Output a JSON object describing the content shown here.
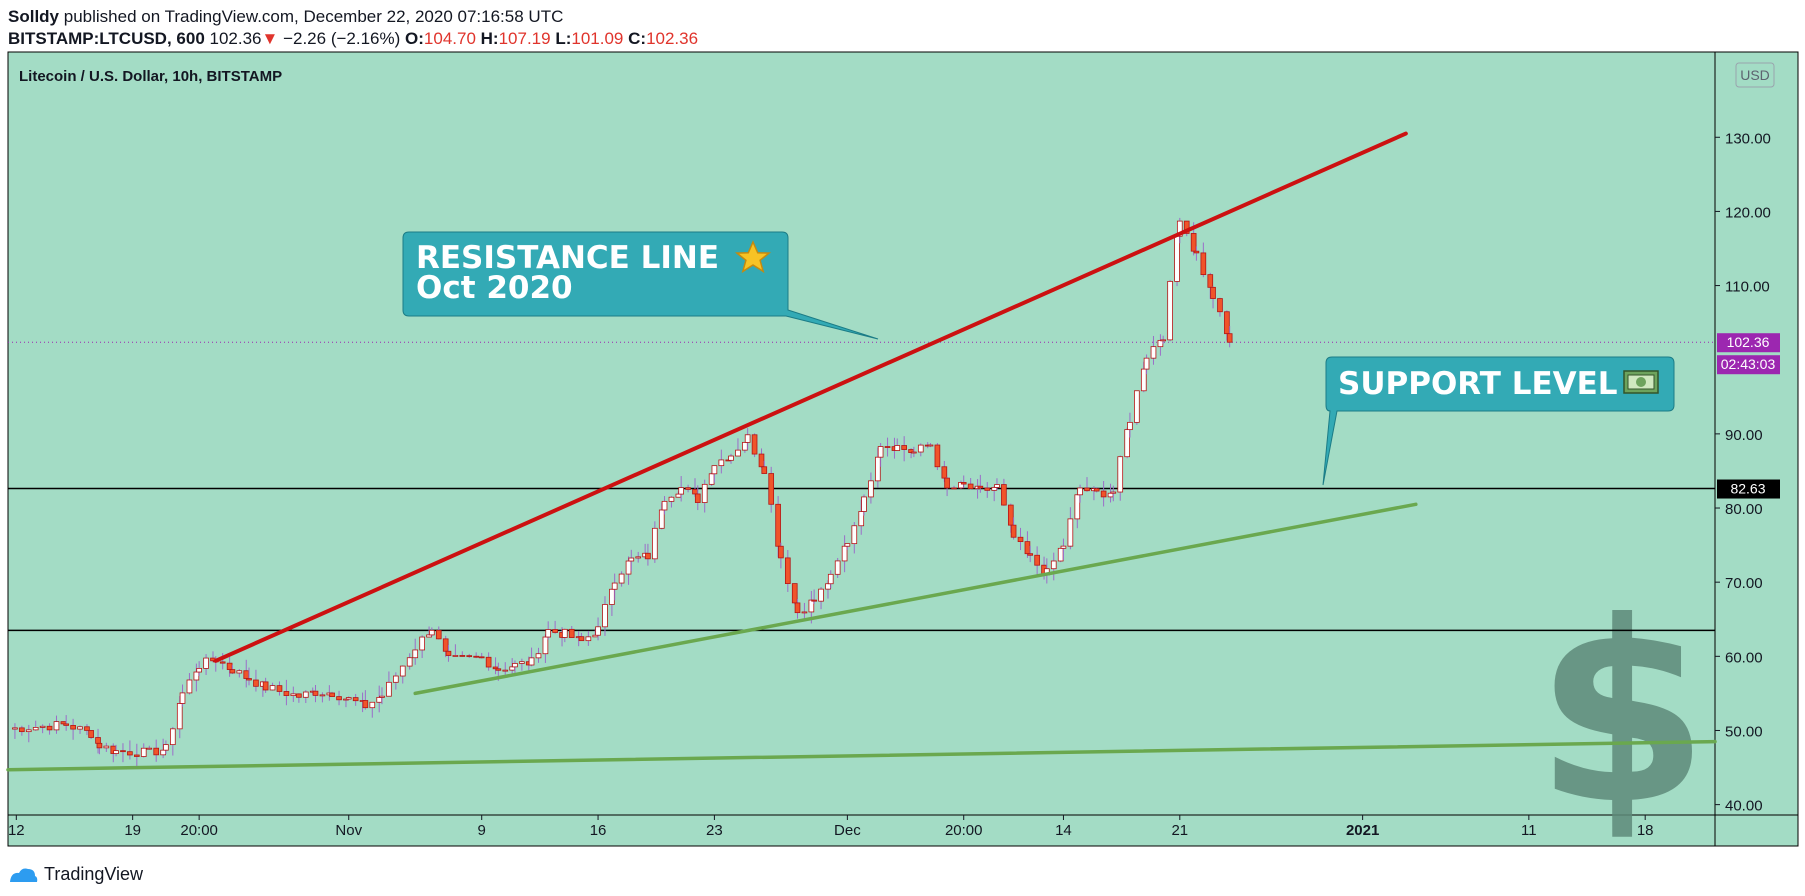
{
  "header": {
    "author": "Solldy",
    "published_text": "published on TradingView.com, December 22, 2020 07:16:58 UTC",
    "symbol": "BITSTAMP:LTCUSD, 600",
    "last": "102.36",
    "change": "−2.26 (−2.16%)",
    "o_label": "O:",
    "o": "104.70",
    "h_label": "H:",
    "h": "107.19",
    "l_label": "L:",
    "l": "101.09",
    "c_label": "C:",
    "c": "102.36"
  },
  "chart_data": {
    "type": "candlestick",
    "title": "Litecoin / U.S. Dollar, 10h, BITSTAMP",
    "currency": "USD",
    "ylim": [
      38.6,
      141.5
    ],
    "y_ticks": [
      40,
      50,
      60,
      70,
      80,
      90,
      110,
      120,
      130
    ],
    "x_ticks": [
      "12",
      "19",
      "20:00",
      "Nov",
      "9",
      "16",
      "23",
      "Dec",
      "20:00",
      "14",
      "21",
      "2021",
      "11",
      "18"
    ],
    "x_tick_days": [
      0,
      7,
      11,
      20,
      28,
      35,
      42,
      50,
      57,
      63,
      70,
      81,
      91,
      98
    ],
    "x_range_days": [
      -0.5,
      102.2
    ],
    "price_badge": "102.36",
    "timer_badge": "02:43:03",
    "level_badge": "82.63",
    "price_line": 102.36,
    "horizontal_levels": [
      82.63,
      63.5
    ],
    "candle_keys": [
      [
        -0.5,
        50.2
      ],
      [
        3,
        50.8
      ],
      [
        4.5,
        49.6
      ],
      [
        5,
        48
      ],
      [
        6,
        47.2
      ],
      [
        8,
        47
      ],
      [
        9,
        47.5
      ],
      [
        10,
        55
      ],
      [
        11,
        58.8
      ],
      [
        12,
        59.6
      ],
      [
        13,
        58.2
      ],
      [
        14,
        57
      ],
      [
        15,
        55.8
      ],
      [
        17,
        54.6
      ],
      [
        18,
        55.2
      ],
      [
        19,
        55.1
      ],
      [
        20,
        54.2
      ],
      [
        21,
        53.3
      ],
      [
        22,
        54.7
      ],
      [
        24,
        61.2
      ],
      [
        25,
        63.8
      ],
      [
        26,
        59.5
      ],
      [
        28,
        59.8
      ],
      [
        29,
        58.3
      ],
      [
        30,
        58.8
      ],
      [
        31,
        59.2
      ],
      [
        32,
        63.5
      ],
      [
        33,
        63
      ],
      [
        34,
        62
      ],
      [
        35,
        63.6
      ],
      [
        36,
        70.5
      ],
      [
        37,
        73
      ],
      [
        38,
        73.5
      ],
      [
        39,
        81.5
      ],
      [
        40,
        82.7
      ],
      [
        41,
        81.2
      ],
      [
        42,
        86
      ],
      [
        43,
        87.2
      ],
      [
        44,
        89.5
      ],
      [
        45,
        85.3
      ],
      [
        46,
        73.4
      ],
      [
        47,
        66
      ],
      [
        48,
        67.5
      ],
      [
        49,
        70.5
      ],
      [
        50,
        75.5
      ],
      [
        51,
        81
      ],
      [
        52,
        88.7
      ],
      [
        53,
        88.3
      ],
      [
        54,
        87.5
      ],
      [
        55,
        88.6
      ],
      [
        56,
        82.5
      ],
      [
        57,
        83
      ],
      [
        58,
        82.2
      ],
      [
        59,
        82.9
      ],
      [
        60,
        76
      ],
      [
        61,
        73.2
      ],
      [
        62,
        71.2
      ],
      [
        63,
        75
      ],
      [
        64,
        82.7
      ],
      [
        65,
        82
      ],
      [
        66,
        82.2
      ],
      [
        67,
        92
      ],
      [
        68,
        100.6
      ],
      [
        69,
        103.3
      ],
      [
        70,
        119.3
      ],
      [
        71,
        114.2
      ],
      [
        72,
        108.5
      ],
      [
        73,
        102.36
      ]
    ],
    "series": [
      {
        "type": "trendline",
        "color": "#cc1111",
        "points": [
          [
            12,
            59.4
          ],
          [
            83.6,
            130.5
          ]
        ]
      },
      {
        "type": "trendline",
        "color": "#6aa84f",
        "points": [
          [
            24,
            55
          ],
          [
            84.2,
            80.5
          ]
        ]
      },
      {
        "type": "trendline",
        "color": "#6aa84f",
        "points": [
          [
            -0.5,
            44.7
          ],
          [
            102.2,
            48.5
          ]
        ]
      }
    ],
    "annotations": [
      {
        "text_line1": "RESISTANCE LINE",
        "text_line2": "Oct 2020",
        "icon": "star-icon",
        "pointer": [
          51.5,
          102
        ]
      },
      {
        "text_line1": "SUPPORT LEVEL",
        "icon": "money-icon",
        "pointer": [
          77,
          83
        ]
      }
    ],
    "colors": {
      "background": "#a3dcc5",
      "candle_up": "#ffffff",
      "candle_down": "#f0542a",
      "candle_outline": "#b51515",
      "wick": "#9b6dc9",
      "callout": "#33aab5",
      "badge_purple": "#9c27b0",
      "badge_black": "#000000",
      "dollar_watermark": "#5e8a79"
    }
  },
  "footer": {
    "brand": "TradingView"
  }
}
